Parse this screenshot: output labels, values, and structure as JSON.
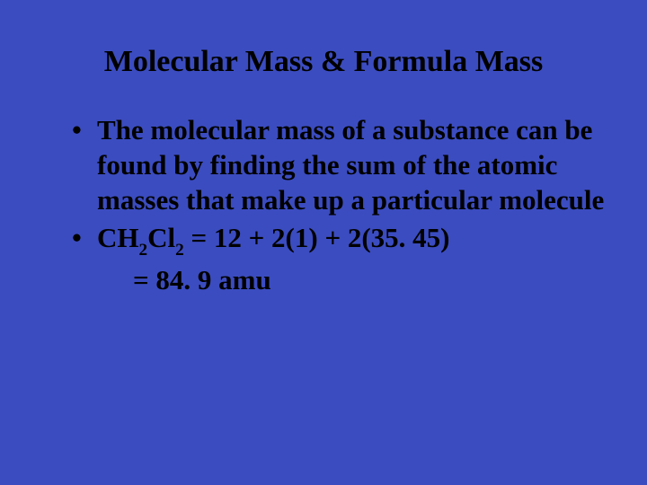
{
  "background_color": "#3b4cc0",
  "text_color": "#000000",
  "font_family": "Comic Sans MS",
  "title": {
    "text": "Molecular Mass & Formula Mass",
    "fontsize": 34,
    "weight": "bold",
    "align": "center"
  },
  "bullets": [
    {
      "text": "The molecular mass of a substance can be found by finding the sum of the atomic masses that make up a particular molecule"
    },
    {
      "formula": {
        "compound": "CH2Cl2",
        "compound_parts": [
          "CH",
          "2",
          "Cl",
          "2"
        ],
        "equation_line1": " = 12 + 2(1) + 2(35. 45)",
        "equation_line2": "= 84. 9 amu"
      }
    }
  ],
  "body_fontsize": 31,
  "body_lineheight": 1.25,
  "bullet_char": "•"
}
